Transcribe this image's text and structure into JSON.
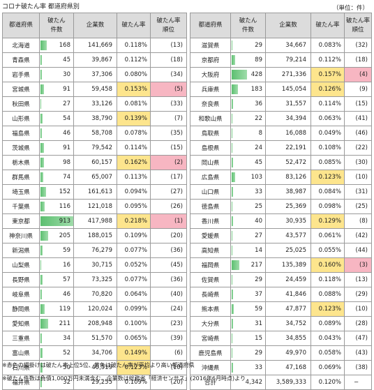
{
  "title": "コロナ破たん率 都道府県別",
  "unit": "（単位：件）",
  "headers": {
    "pref": "都道府県",
    "count_l1": "破たん",
    "count_l2": "件数",
    "companies": "企業数",
    "rate": "破たん率",
    "rank_l1": "破たん率",
    "rank_l2": "順位"
  },
  "max_count": 913,
  "left_rows": [
    {
      "pref": "北海道",
      "count": "168",
      "companies": "141,669",
      "rate": "0.118%",
      "rank": "(13)",
      "hl": ""
    },
    {
      "pref": "青森県",
      "count": "45",
      "companies": "39,867",
      "rate": "0.112%",
      "rank": "(18)",
      "hl": ""
    },
    {
      "pref": "岩手県",
      "count": "30",
      "companies": "37,306",
      "rate": "0.080%",
      "rank": "(34)",
      "hl": ""
    },
    {
      "pref": "宮城県",
      "count": "91",
      "companies": "59,458",
      "rate": "0.153%",
      "rank": "(5)",
      "hl": "pink"
    },
    {
      "pref": "秋田県",
      "count": "27",
      "companies": "33,126",
      "rate": "0.081%",
      "rank": "(33)",
      "hl": ""
    },
    {
      "pref": "山形県",
      "count": "54",
      "companies": "38,790",
      "rate": "0.139%",
      "rank": "(7)",
      "hl": "yellow"
    },
    {
      "pref": "福島県",
      "count": "46",
      "companies": "58,708",
      "rate": "0.078%",
      "rank": "(35)",
      "hl": ""
    },
    {
      "pref": "茨城県",
      "count": "91",
      "companies": "79,542",
      "rate": "0.114%",
      "rank": "(15)",
      "hl": ""
    },
    {
      "pref": "栃木県",
      "count": "98",
      "companies": "60,157",
      "rate": "0.162%",
      "rank": "(2)",
      "hl": "pink"
    },
    {
      "pref": "群馬県",
      "count": "74",
      "companies": "65,007",
      "rate": "0.113%",
      "rank": "(17)",
      "hl": ""
    },
    {
      "pref": "埼玉県",
      "count": "152",
      "companies": "161,613",
      "rate": "0.094%",
      "rank": "(27)",
      "hl": ""
    },
    {
      "pref": "千葉県",
      "count": "116",
      "companies": "121,018",
      "rate": "0.095%",
      "rank": "(26)",
      "hl": ""
    },
    {
      "pref": "東京都",
      "count": "913",
      "companies": "417,988",
      "rate": "0.218%",
      "rank": "(1)",
      "hl": "pink"
    },
    {
      "pref": "神奈川県",
      "count": "205",
      "companies": "188,015",
      "rate": "0.109%",
      "rank": "(20)",
      "hl": ""
    },
    {
      "pref": "新潟県",
      "count": "59",
      "companies": "76,279",
      "rate": "0.077%",
      "rank": "(36)",
      "hl": ""
    },
    {
      "pref": "山梨県",
      "count": "16",
      "companies": "30,715",
      "rate": "0.052%",
      "rank": "(45)",
      "hl": ""
    },
    {
      "pref": "長野県",
      "count": "57",
      "companies": "73,325",
      "rate": "0.077%",
      "rank": "(36)",
      "hl": ""
    },
    {
      "pref": "岐阜県",
      "count": "46",
      "companies": "70,820",
      "rate": "0.064%",
      "rank": "(40)",
      "hl": ""
    },
    {
      "pref": "静岡県",
      "count": "119",
      "companies": "120,024",
      "rate": "0.099%",
      "rank": "(24)",
      "hl": ""
    },
    {
      "pref": "愛知県",
      "count": "211",
      "companies": "208,948",
      "rate": "0.100%",
      "rank": "(23)",
      "hl": ""
    },
    {
      "pref": "三重県",
      "count": "34",
      "companies": "51,570",
      "rate": "0.065%",
      "rank": "(39)",
      "hl": ""
    },
    {
      "pref": "富山県",
      "count": "52",
      "companies": "34,706",
      "rate": "0.149%",
      "rank": "(6)",
      "hl": "yellow"
    },
    {
      "pref": "石川県",
      "count": "50",
      "companies": "40,519",
      "rate": "0.123%",
      "rank": "(10)",
      "hl": "yellow"
    },
    {
      "pref": "福井県",
      "count": "32",
      "companies": "29,255",
      "rate": "0.109%",
      "rank": "(20)",
      "hl": ""
    }
  ],
  "right_rows": [
    {
      "pref": "滋賀県",
      "count": "29",
      "companies": "34,667",
      "rate": "0.083%",
      "rank": "(32)",
      "hl": ""
    },
    {
      "pref": "京都府",
      "count": "89",
      "companies": "79,214",
      "rate": "0.112%",
      "rank": "(18)",
      "hl": ""
    },
    {
      "pref": "大阪府",
      "count": "428",
      "companies": "271,336",
      "rate": "0.157%",
      "rank": "(4)",
      "hl": "pink"
    },
    {
      "pref": "兵庫県",
      "count": "183",
      "companies": "145,054",
      "rate": "0.126%",
      "rank": "(9)",
      "hl": "yellow"
    },
    {
      "pref": "奈良県",
      "count": "36",
      "companies": "31,557",
      "rate": "0.114%",
      "rank": "(15)",
      "hl": ""
    },
    {
      "pref": "和歌山県",
      "count": "22",
      "companies": "34,394",
      "rate": "0.063%",
      "rank": "(41)",
      "hl": ""
    },
    {
      "pref": "鳥取県",
      "count": "8",
      "companies": "16,088",
      "rate": "0.049%",
      "rank": "(46)",
      "hl": ""
    },
    {
      "pref": "島根県",
      "count": "24",
      "companies": "22,191",
      "rate": "0.108%",
      "rank": "(22)",
      "hl": ""
    },
    {
      "pref": "岡山県",
      "count": "45",
      "companies": "52,472",
      "rate": "0.085%",
      "rank": "(30)",
      "hl": ""
    },
    {
      "pref": "広島県",
      "count": "103",
      "companies": "83,126",
      "rate": "0.123%",
      "rank": "(10)",
      "hl": "yellow"
    },
    {
      "pref": "山口県",
      "count": "33",
      "companies": "38,987",
      "rate": "0.084%",
      "rank": "(31)",
      "hl": ""
    },
    {
      "pref": "徳島県",
      "count": "25",
      "companies": "25,369",
      "rate": "0.098%",
      "rank": "(25)",
      "hl": ""
    },
    {
      "pref": "香川県",
      "count": "40",
      "companies": "30,935",
      "rate": "0.129%",
      "rank": "(8)",
      "hl": "yellow"
    },
    {
      "pref": "愛媛県",
      "count": "27",
      "companies": "43,577",
      "rate": "0.061%",
      "rank": "(42)",
      "hl": ""
    },
    {
      "pref": "高知県",
      "count": "14",
      "companies": "25,025",
      "rate": "0.055%",
      "rank": "(44)",
      "hl": ""
    },
    {
      "pref": "福岡県",
      "count": "217",
      "companies": "135,389",
      "rate": "0.160%",
      "rank": "(3)",
      "hl": "pink"
    },
    {
      "pref": "佐賀県",
      "count": "29",
      "companies": "24,459",
      "rate": "0.118%",
      "rank": "(13)",
      "hl": ""
    },
    {
      "pref": "長崎県",
      "count": "37",
      "companies": "41,846",
      "rate": "0.088%",
      "rank": "(29)",
      "hl": ""
    },
    {
      "pref": "熊本県",
      "count": "59",
      "companies": "47,877",
      "rate": "0.123%",
      "rank": "(10)",
      "hl": "yellow"
    },
    {
      "pref": "大分県",
      "count": "31",
      "companies": "34,752",
      "rate": "0.089%",
      "rank": "(28)",
      "hl": ""
    },
    {
      "pref": "宮崎県",
      "count": "15",
      "companies": "34,855",
      "rate": "0.043%",
      "rank": "(47)",
      "hl": ""
    },
    {
      "pref": "鹿児島県",
      "count": "29",
      "companies": "49,970",
      "rate": "0.058%",
      "rank": "(43)",
      "hl": ""
    },
    {
      "pref": "沖縄県",
      "count": "33",
      "companies": "47,168",
      "rate": "0.069%",
      "rank": "(38)",
      "hl": ""
    }
  ],
  "total": {
    "label": "合計",
    "count": "4,342",
    "companies": "3,589,333",
    "rate": "0.120%",
    "rank": "−"
  },
  "notes": [
    "※赤色の網掛けは破たん率上位5位、黄色は破たん率が平均より高い都道府県",
    "※破たん件数は負債1,000万円未満含む、企業数は総務省「経済センサス」(2016年6月時点)より"
  ]
}
